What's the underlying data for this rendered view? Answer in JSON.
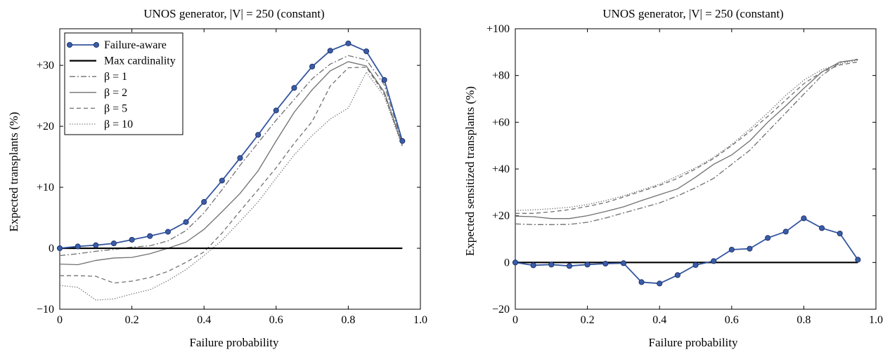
{
  "chart_data": [
    {
      "type": "line",
      "title": "UNOS generator, |V| = 250 (constant)",
      "xlabel": "Failure probability",
      "ylabel": "Expected transplants (%)",
      "xlim": [
        0,
        1.0
      ],
      "ylim": [
        -10,
        36
      ],
      "xticks": [
        0,
        0.2,
        0.4,
        0.6,
        0.8,
        1.0
      ],
      "xtick_labels": [
        "0",
        "0.2",
        "0.4",
        "0.6",
        "0.8",
        "1.0"
      ],
      "yticks": [
        -10,
        0,
        10,
        20,
        30
      ],
      "ytick_labels": [
        "−10",
        "0",
        "+10",
        "+20",
        "+30"
      ],
      "legend_position": "top-left",
      "grid": false,
      "x": [
        0,
        0.05,
        0.1,
        0.15,
        0.2,
        0.25,
        0.3,
        0.35,
        0.4,
        0.45,
        0.5,
        0.55,
        0.6,
        0.65,
        0.7,
        0.75,
        0.8,
        0.85,
        0.9,
        0.95
      ],
      "series": [
        {
          "name": "Failure-aware",
          "color": "#3355a0",
          "style": "marker",
          "values": [
            0,
            0.3,
            0.5,
            0.8,
            1.4,
            2.0,
            2.7,
            4.3,
            7.6,
            11.1,
            14.8,
            18.6,
            22.6,
            26.3,
            29.8,
            32.4,
            33.6,
            32.3,
            27.6,
            17.6
          ]
        },
        {
          "name": "Max cardinality",
          "color": "#000000",
          "style": "solid-thick",
          "values": [
            0,
            0,
            0,
            0,
            0,
            0,
            0,
            0,
            0,
            0,
            0,
            0,
            0,
            0,
            0,
            0,
            0,
            0,
            0,
            0
          ]
        },
        {
          "name": "β = 1",
          "color": "#707070",
          "style": "dashdot",
          "values": [
            -1.2,
            -0.9,
            -0.5,
            -0.2,
            0.2,
            0.4,
            1.2,
            2.9,
            5.8,
            9.6,
            13.6,
            17.3,
            21.0,
            24.4,
            27.8,
            30.2,
            31.6,
            30.9,
            26.8,
            17.2
          ]
        },
        {
          "name": "β = 2",
          "color": "#707070",
          "style": "solid",
          "values": [
            -2.6,
            -2.7,
            -2.0,
            -1.6,
            -1.5,
            -0.9,
            0.0,
            1.0,
            3.1,
            6.0,
            9.0,
            12.7,
            17.6,
            22.3,
            26.0,
            29.1,
            30.6,
            29.9,
            25.6,
            16.9
          ]
        },
        {
          "name": "β = 5",
          "color": "#707070",
          "style": "dashed",
          "values": [
            -4.5,
            -4.5,
            -4.6,
            -5.7,
            -5.4,
            -4.8,
            -3.8,
            -2.3,
            -0.6,
            2.5,
            6.1,
            9.6,
            13.2,
            17.2,
            20.8,
            26.6,
            29.6,
            29.7,
            25.3,
            16.8
          ]
        },
        {
          "name": "β = 10",
          "color": "#707070",
          "style": "dotted",
          "values": [
            -6.1,
            -6.4,
            -8.5,
            -8.3,
            -7.5,
            -6.8,
            -5.3,
            -3.5,
            -1.2,
            1.3,
            4.4,
            7.6,
            11.5,
            15.3,
            18.5,
            21.2,
            23.0,
            28.9,
            24.9,
            16.6
          ]
        }
      ]
    },
    {
      "type": "line",
      "title": "UNOS generator, |V| = 250 (constant)",
      "xlabel": "Failure probability",
      "ylabel": "Expected sensitized transplants (%)",
      "xlim": [
        0,
        1.0
      ],
      "ylim": [
        -20,
        100
      ],
      "xticks": [
        0,
        0.2,
        0.4,
        0.6,
        0.8,
        1.0
      ],
      "xtick_labels": [
        "0",
        "0.2",
        "0.4",
        "0.6",
        "0.8",
        "1.0"
      ],
      "yticks": [
        -20,
        0,
        20,
        40,
        60,
        80,
        100
      ],
      "ytick_labels": [
        "−20",
        "0",
        "+20",
        "+40",
        "+60",
        "+80",
        "+100"
      ],
      "grid": false,
      "x": [
        0,
        0.05,
        0.1,
        0.15,
        0.2,
        0.25,
        0.3,
        0.35,
        0.4,
        0.45,
        0.5,
        0.55,
        0.6,
        0.65,
        0.7,
        0.75,
        0.8,
        0.85,
        0.9,
        0.95
      ],
      "series": [
        {
          "color": "#3355a0",
          "style": "marker",
          "values": [
            0,
            -1.2,
            -0.9,
            -1.5,
            -0.9,
            -0.5,
            -0.3,
            -8.4,
            -9.0,
            -5.4,
            -1.1,
            0.6,
            5.5,
            5.9,
            10.5,
            13.2,
            18.9,
            14.7,
            12.4,
            1.2
          ]
        },
        {
          "color": "#000000",
          "style": "solid-thick",
          "values": [
            0,
            0,
            0,
            0,
            0,
            0,
            0,
            0,
            0,
            0,
            0,
            0,
            0,
            0,
            0,
            0,
            0,
            0,
            0,
            0
          ]
        },
        {
          "color": "#707070",
          "style": "dashdot",
          "values": [
            16.5,
            16.2,
            16.2,
            16.3,
            17.2,
            19.0,
            21.2,
            23.3,
            25.5,
            28.5,
            32.0,
            36.0,
            42.0,
            48.0,
            56.0,
            64.0,
            72.0,
            80.0,
            85.5,
            87.0
          ]
        },
        {
          "color": "#707070",
          "style": "solid",
          "values": [
            19.8,
            19.6,
            18.8,
            18.8,
            20.0,
            21.8,
            23.8,
            26.5,
            29.0,
            31.5,
            36.5,
            42.0,
            46.0,
            52.0,
            60.0,
            67.0,
            74.5,
            81.5,
            85.8,
            86.8
          ]
        },
        {
          "color": "#707070",
          "style": "dashed",
          "values": [
            21.0,
            21.0,
            21.7,
            22.6,
            24.0,
            25.6,
            28.0,
            30.5,
            33.0,
            36.0,
            40.0,
            44.5,
            50.0,
            56.0,
            62.5,
            69.5,
            76.5,
            81.5,
            84.5,
            85.8
          ]
        },
        {
          "color": "#707070",
          "style": "dotted",
          "values": [
            22.3,
            22.5,
            23.0,
            23.6,
            24.8,
            26.5,
            28.5,
            31.0,
            33.5,
            37.0,
            40.5,
            45.0,
            50.5,
            57.0,
            64.0,
            71.5,
            78.0,
            82.5,
            85.0,
            86.5
          ]
        }
      ]
    }
  ]
}
